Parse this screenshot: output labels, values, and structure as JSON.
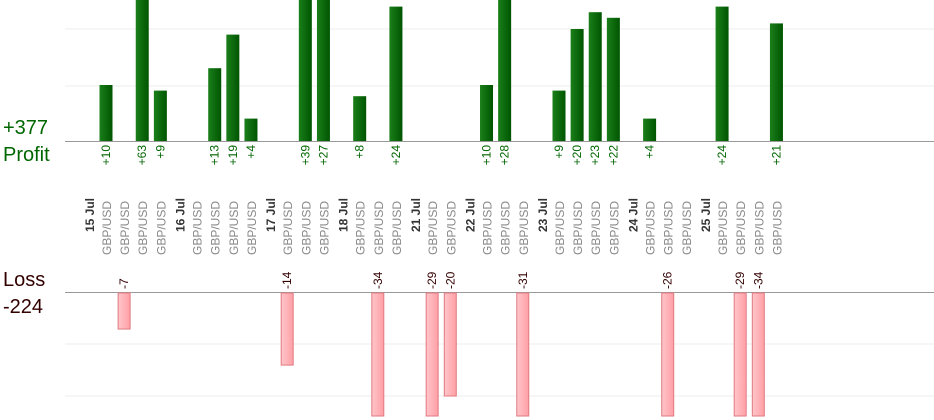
{
  "summary": {
    "profit_total": "+377",
    "profit_label": "Profit",
    "loss_label": "Loss",
    "loss_total": "-224"
  },
  "colors": {
    "profit_bar": "#0a6b0a",
    "profit_text": "#006600",
    "loss_bar": "#ffb3b8",
    "loss_border": "#e07a80",
    "loss_text": "#330000",
    "axis": "#999999",
    "grid": "#eeeeee",
    "pair_text": "#888888",
    "date_text": "#333333"
  },
  "chart_data": {
    "type": "bar",
    "profit_axis_max": 25,
    "loss_axis_max": 22,
    "days": [
      {
        "date": "15 Jul",
        "trades": [
          {
            "pair": "GBP/USD",
            "value": 10
          },
          {
            "pair": "GBP/USD",
            "value": -7
          },
          {
            "pair": "GBP/USD",
            "value": 63
          },
          {
            "pair": "GBP/USD",
            "value": 9
          }
        ]
      },
      {
        "date": "16 Jul",
        "trades": [
          {
            "pair": "GBP/USD",
            "value": null
          },
          {
            "pair": "GBP/USD",
            "value": 13
          },
          {
            "pair": "GBP/USD",
            "value": 19
          },
          {
            "pair": "GBP/USD",
            "value": 4
          }
        ]
      },
      {
        "date": "17 Jul",
        "trades": [
          {
            "pair": "GBP/USD",
            "value": -14
          },
          {
            "pair": "GBP/USD",
            "value": 39
          },
          {
            "pair": "GBP/USD",
            "value": 27
          }
        ]
      },
      {
        "date": "18 Jul",
        "trades": [
          {
            "pair": "GBP/USD",
            "value": 8
          },
          {
            "pair": "GBP/USD",
            "value": -34
          },
          {
            "pair": "GBP/USD",
            "value": 24
          }
        ]
      },
      {
        "date": "21 Jul",
        "trades": [
          {
            "pair": "GBP/USD",
            "value": -29
          },
          {
            "pair": "GBP/USD",
            "value": -20
          }
        ]
      },
      {
        "date": "22 Jul",
        "trades": [
          {
            "pair": "GBP/USD",
            "value": 10
          },
          {
            "pair": "GBP/USD",
            "value": 28
          },
          {
            "pair": "GBP/USD",
            "value": -31
          }
        ]
      },
      {
        "date": "23 Jul",
        "trades": [
          {
            "pair": "GBP/USD",
            "value": 9
          },
          {
            "pair": "GBP/USD",
            "value": 20
          },
          {
            "pair": "GBP/USD",
            "value": 23
          },
          {
            "pair": "GBP/USD",
            "value": 22
          }
        ]
      },
      {
        "date": "24 Jul",
        "trades": [
          {
            "pair": "GBP/USD",
            "value": 4
          },
          {
            "pair": "GBP/USD",
            "value": -26
          },
          {
            "pair": "GBP/USD",
            "value": null
          }
        ]
      },
      {
        "date": "25 Jul",
        "trades": [
          {
            "pair": "GBP/USD",
            "value": 24
          },
          {
            "pair": "GBP/USD",
            "value": -29
          },
          {
            "pair": "GBP/USD",
            "value": -34
          },
          {
            "pair": "GBP/USD",
            "value": 21
          }
        ]
      }
    ]
  }
}
